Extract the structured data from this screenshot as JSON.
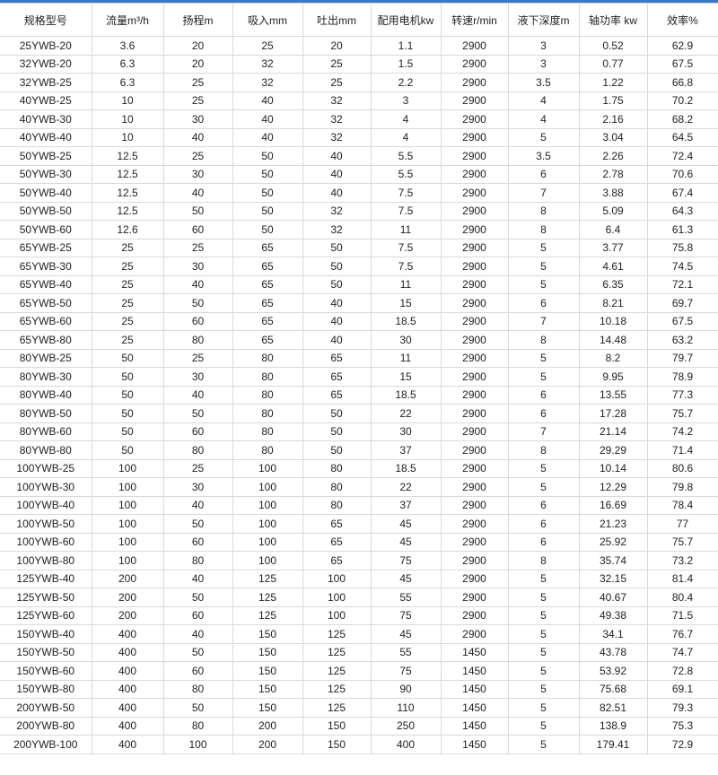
{
  "headers": [
    "规格型号",
    "流量m³/h",
    "扬程m",
    "吸入mm",
    "吐出mm",
    "配用电机kw",
    "转速r/min",
    "液下深度m",
    "轴功率 kw",
    "效率%"
  ],
  "rows": [
    [
      "25YWB-20",
      "3.6",
      "20",
      "25",
      "20",
      "1.1",
      "2900",
      "3",
      "0.52",
      "62.9"
    ],
    [
      "32YWB-20",
      "6.3",
      "20",
      "32",
      "25",
      "1.5",
      "2900",
      "3",
      "0.77",
      "67.5"
    ],
    [
      "32YWB-25",
      "6.3",
      "25",
      "32",
      "25",
      "2.2",
      "2900",
      "3.5",
      "1.22",
      "66.8"
    ],
    [
      "40YWB-25",
      "10",
      "25",
      "40",
      "32",
      "3",
      "2900",
      "4",
      "1.75",
      "70.2"
    ],
    [
      "40YWB-30",
      "10",
      "30",
      "40",
      "32",
      "4",
      "2900",
      "4",
      "2.16",
      "68.2"
    ],
    [
      "40YWB-40",
      "10",
      "40",
      "40",
      "32",
      "4",
      "2900",
      "5",
      "3.04",
      "64.5"
    ],
    [
      "50YWB-25",
      "12.5",
      "25",
      "50",
      "40",
      "5.5",
      "2900",
      "3.5",
      "2.26",
      "72.4"
    ],
    [
      "50YWB-30",
      "12.5",
      "30",
      "50",
      "40",
      "5.5",
      "2900",
      "6",
      "2.78",
      "70.6"
    ],
    [
      "50YWB-40",
      "12.5",
      "40",
      "50",
      "40",
      "7.5",
      "2900",
      "7",
      "3.88",
      "67.4"
    ],
    [
      "50YWB-50",
      "12.5",
      "50",
      "50",
      "32",
      "7.5",
      "2900",
      "8",
      "5.09",
      "64.3"
    ],
    [
      "50YWB-60",
      "12.6",
      "60",
      "50",
      "32",
      "11",
      "2900",
      "8",
      "6.4",
      "61.3"
    ],
    [
      "65YWB-25",
      "25",
      "25",
      "65",
      "50",
      "7.5",
      "2900",
      "5",
      "3.77",
      "75.8"
    ],
    [
      "65YWB-30",
      "25",
      "30",
      "65",
      "50",
      "7.5",
      "2900",
      "5",
      "4.61",
      "74.5"
    ],
    [
      "65YWB-40",
      "25",
      "40",
      "65",
      "50",
      "11",
      "2900",
      "5",
      "6.35",
      "72.1"
    ],
    [
      "65YWB-50",
      "25",
      "50",
      "65",
      "40",
      "15",
      "2900",
      "6",
      "8.21",
      "69.7"
    ],
    [
      "65YWB-60",
      "25",
      "60",
      "65",
      "40",
      "18.5",
      "2900",
      "7",
      "10.18",
      "67.5"
    ],
    [
      "65YWB-80",
      "25",
      "80",
      "65",
      "40",
      "30",
      "2900",
      "8",
      "14.48",
      "63.2"
    ],
    [
      "80YWB-25",
      "50",
      "25",
      "80",
      "65",
      "11",
      "2900",
      "5",
      "8.2",
      "79.7"
    ],
    [
      "80YWB-30",
      "50",
      "30",
      "80",
      "65",
      "15",
      "2900",
      "5",
      "9.95",
      "78.9"
    ],
    [
      "80YWB-40",
      "50",
      "40",
      "80",
      "65",
      "18.5",
      "2900",
      "6",
      "13.55",
      "77.3"
    ],
    [
      "80YWB-50",
      "50",
      "50",
      "80",
      "50",
      "22",
      "2900",
      "6",
      "17.28",
      "75.7"
    ],
    [
      "80YWB-60",
      "50",
      "60",
      "80",
      "50",
      "30",
      "2900",
      "7",
      "21.14",
      "74.2"
    ],
    [
      "80YWB-80",
      "50",
      "80",
      "80",
      "50",
      "37",
      "2900",
      "8",
      "29.29",
      "71.4"
    ],
    [
      "100YWB-25",
      "100",
      "25",
      "100",
      "80",
      "18.5",
      "2900",
      "5",
      "10.14",
      "80.6"
    ],
    [
      "100YWB-30",
      "100",
      "30",
      "100",
      "80",
      "22",
      "2900",
      "5",
      "12.29",
      "79.8"
    ],
    [
      "100YWB-40",
      "100",
      "40",
      "100",
      "80",
      "37",
      "2900",
      "6",
      "16.69",
      "78.4"
    ],
    [
      "100YWB-50",
      "100",
      "50",
      "100",
      "65",
      "45",
      "2900",
      "6",
      "21.23",
      "77"
    ],
    [
      "100YWB-60",
      "100",
      "60",
      "100",
      "65",
      "45",
      "2900",
      "6",
      "25.92",
      "75.7"
    ],
    [
      "100YWB-80",
      "100",
      "80",
      "100",
      "65",
      "75",
      "2900",
      "8",
      "35.74",
      "73.2"
    ],
    [
      "125YWB-40",
      "200",
      "40",
      "125",
      "100",
      "45",
      "2900",
      "5",
      "32.15",
      "81.4"
    ],
    [
      "125YWB-50",
      "200",
      "50",
      "125",
      "100",
      "55",
      "2900",
      "5",
      "40.67",
      "80.4"
    ],
    [
      "125YWB-60",
      "200",
      "60",
      "125",
      "100",
      "75",
      "2900",
      "5",
      "49.38",
      "71.5"
    ],
    [
      "150YWB-40",
      "400",
      "40",
      "150",
      "125",
      "45",
      "2900",
      "5",
      "34.1",
      "76.7"
    ],
    [
      "150YWB-50",
      "400",
      "50",
      "150",
      "125",
      "55",
      "1450",
      "5",
      "43.78",
      "74.7"
    ],
    [
      "150YWB-60",
      "400",
      "60",
      "150",
      "125",
      "75",
      "1450",
      "5",
      "53.92",
      "72.8"
    ],
    [
      "150YWB-80",
      "400",
      "80",
      "150",
      "125",
      "90",
      "1450",
      "5",
      "75.68",
      "69.1"
    ],
    [
      "200YWB-50",
      "400",
      "50",
      "150",
      "125",
      "110",
      "1450",
      "5",
      "82.51",
      "79.3"
    ],
    [
      "200YWB-80",
      "400",
      "80",
      "200",
      "150",
      "250",
      "1450",
      "5",
      "138.9",
      "75.3"
    ],
    [
      "200YWB-100",
      "400",
      "100",
      "200",
      "150",
      "400",
      "1450",
      "5",
      "179.41",
      "72.9"
    ]
  ],
  "colors": {
    "accent": "#3a78c0",
    "border": "#d9d9d9"
  }
}
